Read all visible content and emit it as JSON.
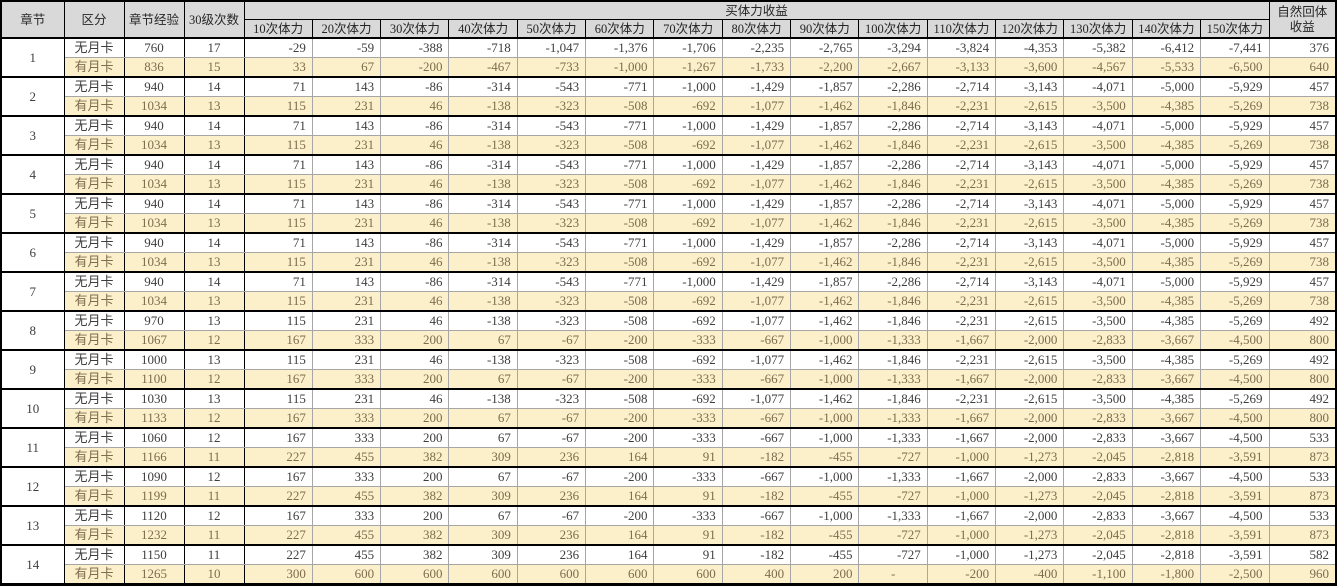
{
  "table": {
    "headers": {
      "chapter": "章节",
      "category": "区分",
      "chapter_exp": "章节经验",
      "level30_count": "30级次数",
      "buy_stamina_group": "买体力收益",
      "stamina_cols": [
        "10次体力",
        "20次体力",
        "30次体力",
        "40次体力",
        "50次体力",
        "60次体力",
        "70次体力",
        "80次体力",
        "90次体力",
        "100次体力",
        "110次体力",
        "120次体力",
        "130次体力",
        "140次体力",
        "150次体力"
      ],
      "natural_recovery_line1": "自然回体",
      "natural_recovery_line2": "收益"
    },
    "colors": {
      "header_bg": "#d9d9d9",
      "chapter_col_bg": "#dfe4f2",
      "monthly_row_bg": "#fcf0cb",
      "free_row_bg": "#ffffff",
      "free_row_text": "#3e3e3e",
      "monthly_row_text": "#7d6d4c",
      "group_border": "#000000",
      "grid_line": "#a6a6a6"
    },
    "chapters": [
      {
        "chapter": "1",
        "rows": [
          {
            "category": "无月卡",
            "exp": "760",
            "count": "17",
            "values": [
              "-29",
              "-59",
              "-388",
              "-718",
              "-1,047",
              "-1,376",
              "-1,706",
              "-2,235",
              "-2,765",
              "-3,294",
              "-3,824",
              "-4,353",
              "-5,382",
              "-6,412",
              "-7,441"
            ],
            "natural": "376"
          },
          {
            "category": "有月卡",
            "exp": "836",
            "count": "15",
            "values": [
              "33",
              "67",
              "-200",
              "-467",
              "-733",
              "-1,000",
              "-1,267",
              "-1,733",
              "-2,200",
              "-2,667",
              "-3,133",
              "-3,600",
              "-4,567",
              "-5,533",
              "-6,500"
            ],
            "natural": "640"
          }
        ]
      },
      {
        "chapter": "2",
        "rows": [
          {
            "category": "无月卡",
            "exp": "940",
            "count": "14",
            "values": [
              "71",
              "143",
              "-86",
              "-314",
              "-543",
              "-771",
              "-1,000",
              "-1,429",
              "-1,857",
              "-2,286",
              "-2,714",
              "-3,143",
              "-4,071",
              "-5,000",
              "-5,929"
            ],
            "natural": "457"
          },
          {
            "category": "有月卡",
            "exp": "1034",
            "count": "13",
            "values": [
              "115",
              "231",
              "46",
              "-138",
              "-323",
              "-508",
              "-692",
              "-1,077",
              "-1,462",
              "-1,846",
              "-2,231",
              "-2,615",
              "-3,500",
              "-4,385",
              "-5,269"
            ],
            "natural": "738"
          }
        ]
      },
      {
        "chapter": "3",
        "rows": [
          {
            "category": "无月卡",
            "exp": "940",
            "count": "14",
            "values": [
              "71",
              "143",
              "-86",
              "-314",
              "-543",
              "-771",
              "-1,000",
              "-1,429",
              "-1,857",
              "-2,286",
              "-2,714",
              "-3,143",
              "-4,071",
              "-5,000",
              "-5,929"
            ],
            "natural": "457"
          },
          {
            "category": "有月卡",
            "exp": "1034",
            "count": "13",
            "values": [
              "115",
              "231",
              "46",
              "-138",
              "-323",
              "-508",
              "-692",
              "-1,077",
              "-1,462",
              "-1,846",
              "-2,231",
              "-2,615",
              "-3,500",
              "-4,385",
              "-5,269"
            ],
            "natural": "738"
          }
        ]
      },
      {
        "chapter": "4",
        "rows": [
          {
            "category": "无月卡",
            "exp": "940",
            "count": "14",
            "values": [
              "71",
              "143",
              "-86",
              "-314",
              "-543",
              "-771",
              "-1,000",
              "-1,429",
              "-1,857",
              "-2,286",
              "-2,714",
              "-3,143",
              "-4,071",
              "-5,000",
              "-5,929"
            ],
            "natural": "457"
          },
          {
            "category": "有月卡",
            "exp": "1034",
            "count": "13",
            "values": [
              "115",
              "231",
              "46",
              "-138",
              "-323",
              "-508",
              "-692",
              "-1,077",
              "-1,462",
              "-1,846",
              "-2,231",
              "-2,615",
              "-3,500",
              "-4,385",
              "-5,269"
            ],
            "natural": "738"
          }
        ]
      },
      {
        "chapter": "5",
        "rows": [
          {
            "category": "无月卡",
            "exp": "940",
            "count": "14",
            "values": [
              "71",
              "143",
              "-86",
              "-314",
              "-543",
              "-771",
              "-1,000",
              "-1,429",
              "-1,857",
              "-2,286",
              "-2,714",
              "-3,143",
              "-4,071",
              "-5,000",
              "-5,929"
            ],
            "natural": "457"
          },
          {
            "category": "有月卡",
            "exp": "1034",
            "count": "13",
            "values": [
              "115",
              "231",
              "46",
              "-138",
              "-323",
              "-508",
              "-692",
              "-1,077",
              "-1,462",
              "-1,846",
              "-2,231",
              "-2,615",
              "-3,500",
              "-4,385",
              "-5,269"
            ],
            "natural": "738"
          }
        ]
      },
      {
        "chapter": "6",
        "rows": [
          {
            "category": "无月卡",
            "exp": "940",
            "count": "14",
            "values": [
              "71",
              "143",
              "-86",
              "-314",
              "-543",
              "-771",
              "-1,000",
              "-1,429",
              "-1,857",
              "-2,286",
              "-2,714",
              "-3,143",
              "-4,071",
              "-5,000",
              "-5,929"
            ],
            "natural": "457"
          },
          {
            "category": "有月卡",
            "exp": "1034",
            "count": "13",
            "values": [
              "115",
              "231",
              "46",
              "-138",
              "-323",
              "-508",
              "-692",
              "-1,077",
              "-1,462",
              "-1,846",
              "-2,231",
              "-2,615",
              "-3,500",
              "-4,385",
              "-5,269"
            ],
            "natural": "738"
          }
        ]
      },
      {
        "chapter": "7",
        "rows": [
          {
            "category": "无月卡",
            "exp": "940",
            "count": "14",
            "values": [
              "71",
              "143",
              "-86",
              "-314",
              "-543",
              "-771",
              "-1,000",
              "-1,429",
              "-1,857",
              "-2,286",
              "-2,714",
              "-3,143",
              "-4,071",
              "-5,000",
              "-5,929"
            ],
            "natural": "457"
          },
          {
            "category": "有月卡",
            "exp": "1034",
            "count": "13",
            "values": [
              "115",
              "231",
              "46",
              "-138",
              "-323",
              "-508",
              "-692",
              "-1,077",
              "-1,462",
              "-1,846",
              "-2,231",
              "-2,615",
              "-3,500",
              "-4,385",
              "-5,269"
            ],
            "natural": "738"
          }
        ]
      },
      {
        "chapter": "8",
        "rows": [
          {
            "category": "无月卡",
            "exp": "970",
            "count": "13",
            "values": [
              "115",
              "231",
              "46",
              "-138",
              "-323",
              "-508",
              "-692",
              "-1,077",
              "-1,462",
              "-1,846",
              "-2,231",
              "-2,615",
              "-3,500",
              "-4,385",
              "-5,269"
            ],
            "natural": "492"
          },
          {
            "category": "有月卡",
            "exp": "1067",
            "count": "12",
            "values": [
              "167",
              "333",
              "200",
              "67",
              "-67",
              "-200",
              "-333",
              "-667",
              "-1,000",
              "-1,333",
              "-1,667",
              "-2,000",
              "-2,833",
              "-3,667",
              "-4,500"
            ],
            "natural": "800"
          }
        ]
      },
      {
        "chapter": "9",
        "rows": [
          {
            "category": "无月卡",
            "exp": "1000",
            "count": "13",
            "values": [
              "115",
              "231",
              "46",
              "-138",
              "-323",
              "-508",
              "-692",
              "-1,077",
              "-1,462",
              "-1,846",
              "-2,231",
              "-2,615",
              "-3,500",
              "-4,385",
              "-5,269"
            ],
            "natural": "492"
          },
          {
            "category": "有月卡",
            "exp": "1100",
            "count": "12",
            "values": [
              "167",
              "333",
              "200",
              "67",
              "-67",
              "-200",
              "-333",
              "-667",
              "-1,000",
              "-1,333",
              "-1,667",
              "-2,000",
              "-2,833",
              "-3,667",
              "-4,500"
            ],
            "natural": "800"
          }
        ]
      },
      {
        "chapter": "10",
        "rows": [
          {
            "category": "无月卡",
            "exp": "1030",
            "count": "13",
            "values": [
              "115",
              "231",
              "46",
              "-138",
              "-323",
              "-508",
              "-692",
              "-1,077",
              "-1,462",
              "-1,846",
              "-2,231",
              "-2,615",
              "-3,500",
              "-4,385",
              "-5,269"
            ],
            "natural": "492"
          },
          {
            "category": "有月卡",
            "exp": "1133",
            "count": "12",
            "values": [
              "167",
              "333",
              "200",
              "67",
              "-67",
              "-200",
              "-333",
              "-667",
              "-1,000",
              "-1,333",
              "-1,667",
              "-2,000",
              "-2,833",
              "-3,667",
              "-4,500"
            ],
            "natural": "800"
          }
        ]
      },
      {
        "chapter": "11",
        "rows": [
          {
            "category": "无月卡",
            "exp": "1060",
            "count": "12",
            "values": [
              "167",
              "333",
              "200",
              "67",
              "-67",
              "-200",
              "-333",
              "-667",
              "-1,000",
              "-1,333",
              "-1,667",
              "-2,000",
              "-2,833",
              "-3,667",
              "-4,500"
            ],
            "natural": "533"
          },
          {
            "category": "有月卡",
            "exp": "1166",
            "count": "11",
            "values": [
              "227",
              "455",
              "382",
              "309",
              "236",
              "164",
              "91",
              "-182",
              "-455",
              "-727",
              "-1,000",
              "-1,273",
              "-2,045",
              "-2,818",
              "-3,591"
            ],
            "natural": "873"
          }
        ]
      },
      {
        "chapter": "12",
        "rows": [
          {
            "category": "无月卡",
            "exp": "1090",
            "count": "12",
            "values": [
              "167",
              "333",
              "200",
              "67",
              "-67",
              "-200",
              "-333",
              "-667",
              "-1,000",
              "-1,333",
              "-1,667",
              "-2,000",
              "-2,833",
              "-3,667",
              "-4,500"
            ],
            "natural": "533"
          },
          {
            "category": "有月卡",
            "exp": "1199",
            "count": "11",
            "values": [
              "227",
              "455",
              "382",
              "309",
              "236",
              "164",
              "91",
              "-182",
              "-455",
              "-727",
              "-1,000",
              "-1,273",
              "-2,045",
              "-2,818",
              "-3,591"
            ],
            "natural": "873"
          }
        ]
      },
      {
        "chapter": "13",
        "rows": [
          {
            "category": "无月卡",
            "exp": "1120",
            "count": "12",
            "values": [
              "167",
              "333",
              "200",
              "67",
              "-67",
              "-200",
              "-333",
              "-667",
              "-1,000",
              "-1,333",
              "-1,667",
              "-2,000",
              "-2,833",
              "-3,667",
              "-4,500"
            ],
            "natural": "533"
          },
          {
            "category": "有月卡",
            "exp": "1232",
            "count": "11",
            "values": [
              "227",
              "455",
              "382",
              "309",
              "236",
              "164",
              "91",
              "-182",
              "-455",
              "-727",
              "-1,000",
              "-1,273",
              "-2,045",
              "-2,818",
              "-3,591"
            ],
            "natural": "873"
          }
        ]
      },
      {
        "chapter": "14",
        "rows": [
          {
            "category": "无月卡",
            "exp": "1150",
            "count": "11",
            "values": [
              "227",
              "455",
              "382",
              "309",
              "236",
              "164",
              "91",
              "-182",
              "-455",
              "-727",
              "-1,000",
              "-1,273",
              "-2,045",
              "-2,818",
              "-3,591"
            ],
            "natural": "582"
          },
          {
            "category": "有月卡",
            "exp": "1265",
            "count": "10",
            "values": [
              "300",
              "600",
              "600",
              "600",
              "600",
              "600",
              "600",
              "400",
              "200",
              "-",
              "-200",
              "-400",
              "-1,100",
              "-1,800",
              "-2,500"
            ],
            "natural": "960"
          }
        ]
      }
    ]
  }
}
